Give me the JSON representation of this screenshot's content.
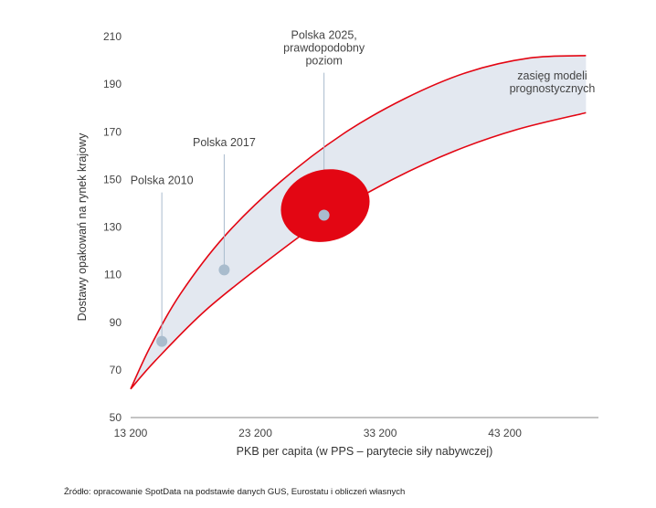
{
  "chart_data": {
    "type": "line",
    "xlabel": "PKB per capita (w PPS – parytecie siły nabywczej)",
    "ylabel": "Dostawy opakowań na rynek krajowy",
    "x_ticks": [
      "13 200",
      "23 200",
      "33 200",
      "43 200"
    ],
    "y_ticks": [
      "50",
      "70",
      "90",
      "110",
      "130",
      "150",
      "170",
      "190",
      "210"
    ],
    "xlim": [
      13200,
      50700
    ],
    "ylim": [
      50,
      210
    ],
    "grid": false,
    "colors": {
      "boundary": "#e30613",
      "band": "#e3e8f0",
      "ellipse": "#e30613",
      "point": "#a9bccd",
      "leader": "#a9bccd"
    },
    "series": [
      {
        "name": "upper",
        "x": [
          13200,
          14800,
          17200,
          20700,
          25200,
          30200,
          35200,
          40200,
          45200,
          49700
        ],
        "y": [
          62,
          80,
          102,
          126,
          149,
          169,
          184,
          195,
          201,
          202
        ]
      },
      {
        "name": "lower",
        "x": [
          13200,
          15200,
          19200,
          24200,
          29200,
          34200,
          39200,
          44200,
          49700
        ],
        "y": [
          62,
          74,
          95,
          116,
          135,
          150,
          162,
          171,
          178
        ]
      }
    ],
    "points": [
      {
        "label": "Polska 2010",
        "x": 15700,
        "y": 82
      },
      {
        "label": "Polska 2017",
        "x": 20700,
        "y": 112
      },
      {
        "label": "Polska 2025, prawdopodobny poziom",
        "x": 28700,
        "y": 135
      }
    ],
    "ellipse": {
      "cx": 28800,
      "cy": 139,
      "rx": 3600,
      "ry": 15,
      "rotate": -15
    },
    "annotations": [
      {
        "lines": [
          "Polska 2010"
        ],
        "x": 15700,
        "y": 148
      },
      {
        "lines": [
          "Polska 2017"
        ],
        "x": 20700,
        "y": 164
      },
      {
        "lines": [
          "Polska 2025,",
          "prawdopodobny",
          "poziom"
        ],
        "x": 28700,
        "y": 209
      },
      {
        "lines": [
          "zasięg modeli",
          "prognostycznych"
        ],
        "x": 47000,
        "y": 192
      }
    ]
  },
  "source": "Źródło: opracowanie SpotData na podstawie danych GUS, Eurostatu i obliczeń własnych"
}
